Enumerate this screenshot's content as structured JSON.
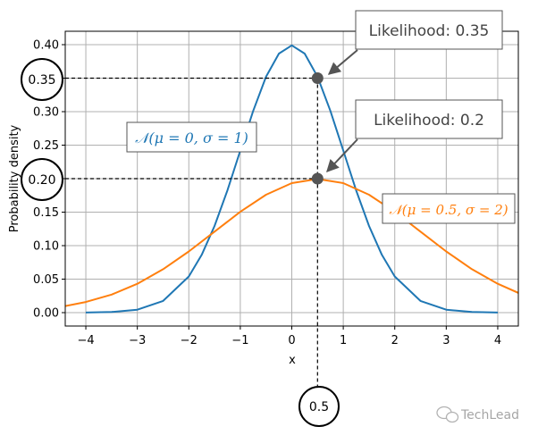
{
  "chart_data": {
    "type": "line",
    "title": "",
    "xlabel": "x",
    "ylabel": "Probability density",
    "xlim": [
      -4.4,
      4.4
    ],
    "ylim": [
      -0.02,
      0.42
    ],
    "grid": true,
    "x_ticks": [
      -4,
      -3,
      -2,
      -1,
      0,
      1,
      2,
      3,
      4
    ],
    "x_tick_labels": [
      "−4",
      "−3",
      "−2",
      "−1",
      "0",
      "1",
      "2",
      "3",
      "4"
    ],
    "y_ticks": [
      0.0,
      0.05,
      0.1,
      0.15,
      0.2,
      0.25,
      0.3,
      0.35,
      0.4
    ],
    "y_tick_labels": [
      "0.00",
      "0.05",
      "0.10",
      "0.15",
      "0.20",
      "0.25",
      "0.30",
      "0.35",
      "0.40"
    ],
    "series": [
      {
        "color": "#1f77b4",
        "x": [
          -4.0,
          -3.5,
          -3.0,
          -2.5,
          -2.0,
          -1.75,
          -1.5,
          -1.25,
          -1.0,
          -0.75,
          -0.5,
          -0.25,
          0.0,
          0.25,
          0.5,
          0.75,
          1.0,
          1.25,
          1.5,
          1.75,
          2.0,
          2.5,
          3.0,
          3.5,
          4.0
        ],
        "values": [
          0.0001,
          0.0009,
          0.0044,
          0.0175,
          0.054,
          0.0863,
          0.1295,
          0.1826,
          0.242,
          0.3011,
          0.3521,
          0.3867,
          0.3989,
          0.3867,
          0.3521,
          0.3011,
          0.242,
          0.1826,
          0.1295,
          0.0863,
          0.054,
          0.0175,
          0.0044,
          0.0009,
          0.0001
        ]
      },
      {
        "color": "#ff7f0e",
        "x": [
          -4.4,
          -4.0,
          -3.5,
          -3.0,
          -2.5,
          -2.0,
          -1.5,
          -1.0,
          -0.5,
          0.0,
          0.5,
          1.0,
          1.5,
          2.0,
          2.5,
          3.0,
          3.5,
          4.0,
          4.4
        ],
        "values": [
          0.0098,
          0.0159,
          0.027,
          0.0431,
          0.0648,
          0.0913,
          0.121,
          0.1506,
          0.176,
          0.1933,
          0.1995,
          0.1933,
          0.176,
          0.1506,
          0.121,
          0.0913,
          0.0648,
          0.0431,
          0.0294
        ]
      }
    ],
    "highlight_points": [
      {
        "x": 0.5,
        "y": 0.35,
        "color": "#555555"
      },
      {
        "x": 0.5,
        "y": 0.2,
        "color": "#555555"
      }
    ],
    "annotations": {
      "likelihood_high": "Likelihood: 0.35",
      "likelihood_low": "Likelihood: 0.2",
      "curve_label_blue": "𝒩(μ = 0, σ = 1)",
      "curve_label_orange": "𝒩(μ = 0.5, σ = 2)",
      "circle_y_high": "0.35",
      "circle_y_low": "0.20",
      "circle_x": "0.5"
    },
    "colors": {
      "blue": "#1f77b4",
      "orange": "#ff7f0e",
      "point": "#555555",
      "grid": "#b0b0b0"
    }
  },
  "watermark": "TechLead"
}
